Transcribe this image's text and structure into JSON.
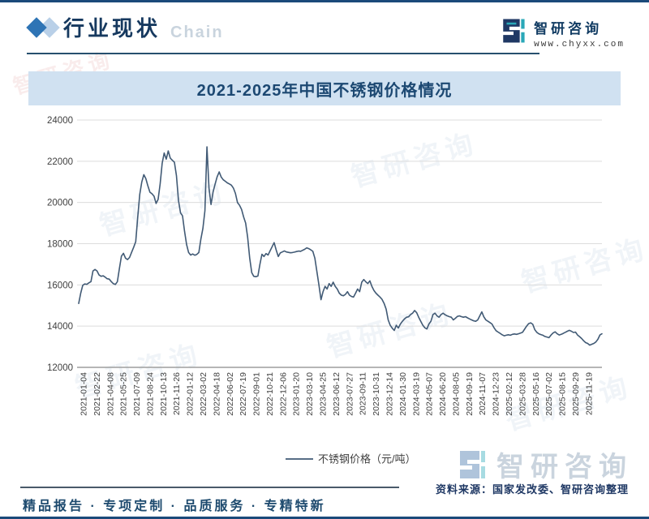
{
  "page": {
    "header": {
      "title": "行业现状",
      "watermark_text": "Chain",
      "brand": {
        "name": "智研咨询",
        "url": "www.chyxx.com"
      }
    },
    "footer": {
      "source_label": "资料来源：国家发改委、智研咨询整理",
      "slogan": "精品报告 · 专项定制 · 品质服务 · 专精特新"
    },
    "watermark_brand": "智研咨询",
    "colors": {
      "accent_navy": "#17375e",
      "banner_bg": "#d0e1f1",
      "line": "#415a75",
      "grid": "#dcdcdc",
      "axis": "#9e9e9e",
      "teal": "#2aa8b8"
    }
  },
  "chart_data": {
    "type": "line",
    "title": "2021-2025年中国不锈钢价格情况",
    "legend_position": "bottom",
    "grid": "horizontal",
    "y_axis": {
      "min": 12000,
      "max": 24000,
      "step": 2000
    },
    "x_ticks": [
      "2021-01-04",
      "2021-02-22",
      "2021-04-08",
      "2021-05-25",
      "2021-07-09",
      "2021-08-24",
      "2021-10-13",
      "2021-11-26",
      "2022-01-12",
      "2022-03-02",
      "2022-04-18",
      "2022-06-02",
      "2022-07-19",
      "2022-09-01",
      "2022-10-21",
      "2022-12-06",
      "2023-01-20",
      "2023-03-10",
      "2023-04-25",
      "2023-06-12",
      "2023-07-27",
      "2023-09-11",
      "2023-10-31",
      "2023-12-14",
      "2024-01-30",
      "2024-03-19",
      "2024-05-07",
      "2024-06-20",
      "2024-08-05",
      "2024-09-19",
      "2024-11-07",
      "2024-12-23",
      "2025-02-12",
      "2025-03-28",
      "2025-05-16",
      "2025-07-02",
      "2025-08-15",
      "2025-09-29",
      "2025-11-19"
    ],
    "series": [
      {
        "name": "不锈钢价格（元/吨）",
        "unit": "元/吨",
        "color": "#415a75",
        "points": [
          [
            "2021-01-04",
            15100
          ],
          [
            "2021-01-08",
            15600
          ],
          [
            "2021-01-15",
            15980
          ],
          [
            "2021-01-22",
            16050
          ],
          [
            "2021-01-29",
            16030
          ],
          [
            "2021-02-05",
            16100
          ],
          [
            "2021-02-10",
            16160
          ],
          [
            "2021-02-18",
            16680
          ],
          [
            "2021-02-26",
            16750
          ],
          [
            "2021-03-05",
            16680
          ],
          [
            "2021-03-12",
            16480
          ],
          [
            "2021-03-19",
            16420
          ],
          [
            "2021-03-26",
            16440
          ],
          [
            "2021-04-02",
            16380
          ],
          [
            "2021-04-09",
            16300
          ],
          [
            "2021-04-16",
            16280
          ],
          [
            "2021-04-23",
            16160
          ],
          [
            "2021-04-30",
            16060
          ],
          [
            "2021-05-07",
            16020
          ],
          [
            "2021-05-14",
            16160
          ],
          [
            "2021-05-21",
            16800
          ],
          [
            "2021-05-28",
            17400
          ],
          [
            "2021-06-04",
            17530
          ],
          [
            "2021-06-11",
            17300
          ],
          [
            "2021-06-18",
            17230
          ],
          [
            "2021-06-25",
            17330
          ],
          [
            "2021-07-02",
            17590
          ],
          [
            "2021-07-09",
            17830
          ],
          [
            "2021-07-16",
            18100
          ],
          [
            "2021-07-23",
            19300
          ],
          [
            "2021-07-30",
            20400
          ],
          [
            "2021-08-06",
            21000
          ],
          [
            "2021-08-13",
            21350
          ],
          [
            "2021-08-20",
            21150
          ],
          [
            "2021-08-27",
            20800
          ],
          [
            "2021-09-03",
            20500
          ],
          [
            "2021-09-10",
            20420
          ],
          [
            "2021-09-17",
            20300
          ],
          [
            "2021-09-24",
            19950
          ],
          [
            "2021-10-01",
            20150
          ],
          [
            "2021-10-08",
            20900
          ],
          [
            "2021-10-15",
            21900
          ],
          [
            "2021-10-20",
            22400
          ],
          [
            "2021-10-25",
            22100
          ],
          [
            "2021-10-29",
            22500
          ],
          [
            "2021-11-05",
            22150
          ],
          [
            "2021-11-12",
            22050
          ],
          [
            "2021-11-19",
            21950
          ],
          [
            "2021-11-26",
            21300
          ],
          [
            "2021-12-03",
            20100
          ],
          [
            "2021-12-10",
            19500
          ],
          [
            "2021-12-17",
            19350
          ],
          [
            "2021-12-24",
            18600
          ],
          [
            "2021-12-31",
            17960
          ],
          [
            "2022-01-07",
            17570
          ],
          [
            "2022-01-14",
            17450
          ],
          [
            "2022-01-21",
            17500
          ],
          [
            "2022-01-28",
            17440
          ],
          [
            "2022-02-04",
            17480
          ],
          [
            "2022-02-11",
            17570
          ],
          [
            "2022-02-18",
            18220
          ],
          [
            "2022-02-25",
            18740
          ],
          [
            "2022-03-04",
            19600
          ],
          [
            "2022-03-09",
            22700
          ],
          [
            "2022-03-11",
            20700
          ],
          [
            "2022-03-18",
            19900
          ],
          [
            "2022-03-25",
            20500
          ],
          [
            "2022-04-01",
            20900
          ],
          [
            "2022-04-08",
            21250
          ],
          [
            "2022-04-15",
            21480
          ],
          [
            "2022-04-22",
            21230
          ],
          [
            "2022-04-29",
            21100
          ],
          [
            "2022-05-06",
            21030
          ],
          [
            "2022-05-13",
            20950
          ],
          [
            "2022-05-20",
            20900
          ],
          [
            "2022-05-27",
            20840
          ],
          [
            "2022-06-03",
            20700
          ],
          [
            "2022-06-10",
            20440
          ],
          [
            "2022-06-17",
            19990
          ],
          [
            "2022-06-24",
            19860
          ],
          [
            "2022-07-01",
            19660
          ],
          [
            "2022-07-08",
            19300
          ],
          [
            "2022-07-15",
            19000
          ],
          [
            "2022-07-22",
            18300
          ],
          [
            "2022-07-29",
            17300
          ],
          [
            "2022-08-05",
            16600
          ],
          [
            "2022-08-12",
            16420
          ],
          [
            "2022-08-19",
            16400
          ],
          [
            "2022-08-26",
            16430
          ],
          [
            "2022-09-02",
            17000
          ],
          [
            "2022-09-09",
            17490
          ],
          [
            "2022-09-16",
            17380
          ],
          [
            "2022-09-23",
            17520
          ],
          [
            "2022-09-30",
            17450
          ],
          [
            "2022-10-07",
            17650
          ],
          [
            "2022-10-14",
            17850
          ],
          [
            "2022-10-21",
            18050
          ],
          [
            "2022-10-28",
            17700
          ],
          [
            "2022-11-04",
            17380
          ],
          [
            "2022-11-11",
            17550
          ],
          [
            "2022-11-18",
            17600
          ],
          [
            "2022-11-25",
            17650
          ],
          [
            "2022-12-02",
            17600
          ],
          [
            "2022-12-09",
            17580
          ],
          [
            "2022-12-16",
            17560
          ],
          [
            "2022-12-23",
            17570
          ],
          [
            "2022-12-30",
            17590
          ],
          [
            "2023-01-06",
            17620
          ],
          [
            "2023-01-13",
            17640
          ],
          [
            "2023-01-20",
            17630
          ],
          [
            "2023-01-27",
            17680
          ],
          [
            "2023-02-03",
            17730
          ],
          [
            "2023-02-10",
            17800
          ],
          [
            "2023-02-17",
            17760
          ],
          [
            "2023-02-24",
            17700
          ],
          [
            "2023-03-03",
            17630
          ],
          [
            "2023-03-10",
            17300
          ],
          [
            "2023-03-17",
            16650
          ],
          [
            "2023-03-24",
            16000
          ],
          [
            "2023-03-31",
            15280
          ],
          [
            "2023-04-07",
            15670
          ],
          [
            "2023-04-14",
            15930
          ],
          [
            "2023-04-21",
            15800
          ],
          [
            "2023-04-28",
            16065
          ],
          [
            "2023-05-05",
            15930
          ],
          [
            "2023-05-12",
            16130
          ],
          [
            "2023-05-19",
            15930
          ],
          [
            "2023-05-26",
            15800
          ],
          [
            "2023-06-02",
            15600
          ],
          [
            "2023-06-09",
            15500
          ],
          [
            "2023-06-16",
            15475
          ],
          [
            "2023-06-23",
            15540
          ],
          [
            "2023-06-30",
            15670
          ],
          [
            "2023-07-07",
            15500
          ],
          [
            "2023-07-14",
            15440
          ],
          [
            "2023-07-21",
            15410
          ],
          [
            "2023-07-28",
            15600
          ],
          [
            "2023-08-04",
            15800
          ],
          [
            "2023-08-11",
            15670
          ],
          [
            "2023-08-18",
            16130
          ],
          [
            "2023-08-25",
            16260
          ],
          [
            "2023-09-01",
            16150
          ],
          [
            "2023-09-08",
            16065
          ],
          [
            "2023-09-15",
            16200
          ],
          [
            "2023-09-22",
            15930
          ],
          [
            "2023-09-29",
            15735
          ],
          [
            "2023-10-06",
            15600
          ],
          [
            "2023-10-13",
            15500
          ],
          [
            "2023-10-20",
            15410
          ],
          [
            "2023-10-27",
            15300
          ],
          [
            "2023-11-03",
            15100
          ],
          [
            "2023-11-10",
            14820
          ],
          [
            "2023-11-17",
            14300
          ],
          [
            "2023-11-24",
            14040
          ],
          [
            "2023-12-01",
            13900
          ],
          [
            "2023-12-08",
            13790
          ],
          [
            "2023-12-15",
            14040
          ],
          [
            "2023-12-22",
            13910
          ],
          [
            "2023-12-29",
            14100
          ],
          [
            "2024-01-05",
            14235
          ],
          [
            "2024-01-12",
            14350
          ],
          [
            "2024-01-19",
            14430
          ],
          [
            "2024-01-26",
            14450
          ],
          [
            "2024-02-02",
            14560
          ],
          [
            "2024-02-09",
            14630
          ],
          [
            "2024-02-16",
            14760
          ],
          [
            "2024-02-23",
            14650
          ],
          [
            "2024-03-01",
            14430
          ],
          [
            "2024-03-08",
            14240
          ],
          [
            "2024-03-15",
            14050
          ],
          [
            "2024-03-22",
            13920
          ],
          [
            "2024-03-29",
            13860
          ],
          [
            "2024-04-05",
            14100
          ],
          [
            "2024-04-12",
            14240
          ],
          [
            "2024-04-19",
            14560
          ],
          [
            "2024-04-26",
            14630
          ],
          [
            "2024-05-03",
            14500
          ],
          [
            "2024-05-10",
            14430
          ],
          [
            "2024-05-17",
            14560
          ],
          [
            "2024-05-24",
            14630
          ],
          [
            "2024-05-31",
            14550
          ],
          [
            "2024-06-07",
            14500
          ],
          [
            "2024-06-14",
            14460
          ],
          [
            "2024-06-21",
            14430
          ],
          [
            "2024-06-28",
            14300
          ],
          [
            "2024-07-05",
            14380
          ],
          [
            "2024-07-12",
            14470
          ],
          [
            "2024-07-19",
            14500
          ],
          [
            "2024-07-26",
            14460
          ],
          [
            "2024-08-02",
            14430
          ],
          [
            "2024-08-09",
            14460
          ],
          [
            "2024-08-16",
            14400
          ],
          [
            "2024-08-23",
            14350
          ],
          [
            "2024-08-30",
            14300
          ],
          [
            "2024-09-06",
            14260
          ],
          [
            "2024-09-13",
            14235
          ],
          [
            "2024-09-20",
            14300
          ],
          [
            "2024-09-27",
            14500
          ],
          [
            "2024-10-04",
            14690
          ],
          [
            "2024-10-11",
            14450
          ],
          [
            "2024-10-18",
            14300
          ],
          [
            "2024-10-25",
            14235
          ],
          [
            "2024-11-01",
            14170
          ],
          [
            "2024-11-08",
            14100
          ],
          [
            "2024-11-15",
            13920
          ],
          [
            "2024-11-22",
            13780
          ],
          [
            "2024-11-29",
            13710
          ],
          [
            "2024-12-06",
            13650
          ],
          [
            "2024-12-13",
            13580
          ],
          [
            "2024-12-20",
            13530
          ],
          [
            "2024-12-27",
            13560
          ],
          [
            "2025-01-03",
            13580
          ],
          [
            "2025-01-10",
            13560
          ],
          [
            "2025-01-17",
            13600
          ],
          [
            "2025-01-24",
            13620
          ],
          [
            "2025-01-31",
            13600
          ],
          [
            "2025-02-07",
            13630
          ],
          [
            "2025-02-14",
            13660
          ],
          [
            "2025-02-21",
            13700
          ],
          [
            "2025-02-28",
            13850
          ],
          [
            "2025-03-07",
            14000
          ],
          [
            "2025-03-14",
            14120
          ],
          [
            "2025-03-21",
            14160
          ],
          [
            "2025-03-28",
            14090
          ],
          [
            "2025-04-04",
            13830
          ],
          [
            "2025-04-11",
            13700
          ],
          [
            "2025-04-18",
            13630
          ],
          [
            "2025-04-25",
            13590
          ],
          [
            "2025-05-02",
            13560
          ],
          [
            "2025-05-09",
            13500
          ],
          [
            "2025-05-16",
            13470
          ],
          [
            "2025-05-23",
            13440
          ],
          [
            "2025-05-30",
            13570
          ],
          [
            "2025-06-06",
            13670
          ],
          [
            "2025-06-13",
            13725
          ],
          [
            "2025-06-20",
            13630
          ],
          [
            "2025-06-27",
            13570
          ],
          [
            "2025-07-04",
            13600
          ],
          [
            "2025-07-11",
            13650
          ],
          [
            "2025-07-18",
            13700
          ],
          [
            "2025-07-25",
            13750
          ],
          [
            "2025-08-01",
            13800
          ],
          [
            "2025-08-08",
            13750
          ],
          [
            "2025-08-15",
            13690
          ],
          [
            "2025-08-22",
            13710
          ],
          [
            "2025-08-29",
            13570
          ],
          [
            "2025-09-05",
            13490
          ],
          [
            "2025-09-12",
            13400
          ],
          [
            "2025-09-19",
            13290
          ],
          [
            "2025-09-26",
            13200
          ],
          [
            "2025-10-03",
            13160
          ],
          [
            "2025-10-10",
            13080
          ],
          [
            "2025-10-17",
            13120
          ],
          [
            "2025-10-24",
            13160
          ],
          [
            "2025-10-31",
            13230
          ],
          [
            "2025-11-07",
            13360
          ],
          [
            "2025-11-14",
            13570
          ],
          [
            "2025-11-19",
            13630
          ]
        ]
      }
    ]
  }
}
